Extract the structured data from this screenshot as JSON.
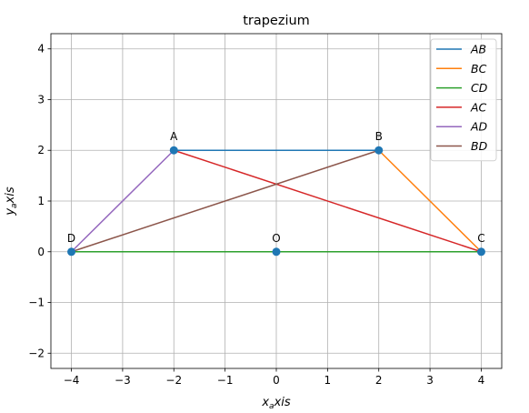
{
  "chart_data": {
    "type": "line",
    "title": "trapezium",
    "xlabel_main": "x",
    "xlabel_sub": "a",
    "xlabel_rest": "xis",
    "ylabel_main": "y",
    "ylabel_sub": "a",
    "ylabel_rest": "xis",
    "xlim": [
      -4.4,
      4.4
    ],
    "ylim": [
      -2.3,
      4.3
    ],
    "xticks": [
      -4,
      -3,
      -2,
      -1,
      0,
      1,
      2,
      3,
      4
    ],
    "yticks": [
      -2,
      -1,
      0,
      1,
      2,
      3,
      4
    ],
    "xtick_labels": [
      "−4",
      "−3",
      "−2",
      "−1",
      "0",
      "1",
      "2",
      "3",
      "4"
    ],
    "ytick_labels": [
      "−2",
      "−1",
      "0",
      "1",
      "2",
      "3",
      "4"
    ],
    "grid": true,
    "legend_position": "top-right",
    "points": [
      {
        "label": "A",
        "x": -2,
        "y": 2
      },
      {
        "label": "B",
        "x": 2,
        "y": 2
      },
      {
        "label": "C",
        "x": 4,
        "y": 0
      },
      {
        "label": "D",
        "x": -4,
        "y": 0
      },
      {
        "label": "O",
        "x": 0,
        "y": 0
      }
    ],
    "point_color": "#1f77b4",
    "series": [
      {
        "name": "AB",
        "color": "#1f77b4",
        "x": [
          -2,
          2
        ],
        "y": [
          2,
          2
        ]
      },
      {
        "name": "BC",
        "color": "#ff7f0e",
        "x": [
          2,
          4
        ],
        "y": [
          2,
          0
        ]
      },
      {
        "name": "CD",
        "color": "#2ca02c",
        "x": [
          4,
          -4
        ],
        "y": [
          0,
          0
        ]
      },
      {
        "name": "AC",
        "color": "#d62728",
        "x": [
          -2,
          4
        ],
        "y": [
          2,
          0
        ]
      },
      {
        "name": "AD",
        "color": "#9467bd",
        "x": [
          -2,
          -4
        ],
        "y": [
          2,
          0
        ]
      },
      {
        "name": "BD",
        "color": "#8c564b",
        "x": [
          2,
          -4
        ],
        "y": [
          2,
          0
        ]
      }
    ]
  }
}
